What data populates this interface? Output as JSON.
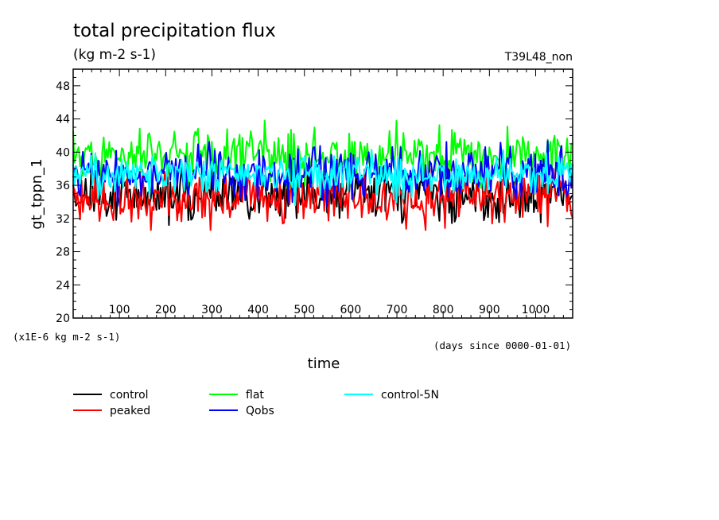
{
  "chart_data": {
    "type": "line",
    "title": "total precipitation flux",
    "units": "(kg m-2 s-1)",
    "run_tag": "T39L48_non",
    "xlabel": "time",
    "ylabel": "gt_tppn_1",
    "y_scale_note": "(x1E-6 kg m-2 s-1)",
    "x_unit_note": "(days since 0000-01-01)",
    "xlim": [
      0,
      1080
    ],
    "ylim": [
      20,
      50
    ],
    "x_ticks": [
      100,
      200,
      300,
      400,
      500,
      600,
      700,
      800,
      900,
      1000
    ],
    "y_ticks": [
      20,
      24,
      28,
      32,
      36,
      40,
      44,
      48
    ],
    "grid": false,
    "legend_position": "bottom",
    "series": [
      {
        "name": "control",
        "color": "#000000",
        "mean": 35.0,
        "amplitude": 1.4,
        "min": 31.2,
        "max": 38.5
      },
      {
        "name": "peaked",
        "color": "#ff0000",
        "mean": 34.6,
        "amplitude": 1.5,
        "min": 30.6,
        "max": 38.0
      },
      {
        "name": "flat",
        "color": "#00ff00",
        "mean": 39.6,
        "amplitude": 1.5,
        "min": 35.5,
        "max": 44.5
      },
      {
        "name": "Qobs",
        "color": "#0000ff",
        "mean": 37.6,
        "amplitude": 1.5,
        "min": 33.5,
        "max": 44.0
      },
      {
        "name": "control-5N",
        "color": "#00ffff",
        "mean": 37.2,
        "amplitude": 1.1,
        "min": 33.5,
        "max": 40.5
      }
    ]
  }
}
